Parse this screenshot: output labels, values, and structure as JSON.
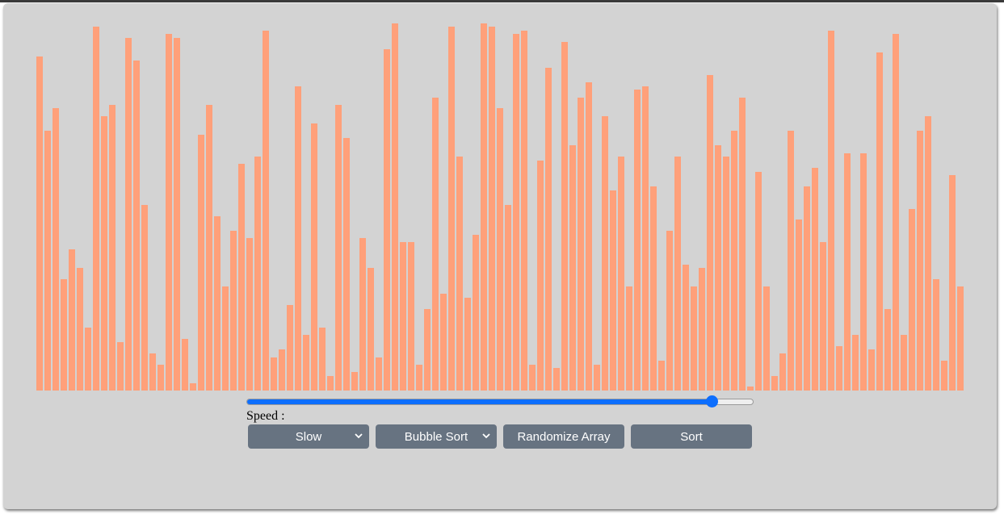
{
  "visualizer": {
    "bar_color": "#ffa07a",
    "panel_color": "#d3d3d3",
    "max_value": 100,
    "values": [
      90,
      70,
      76,
      30,
      38,
      33,
      17,
      98,
      74,
      77,
      13,
      95,
      89,
      50,
      10,
      7,
      96,
      95,
      14,
      2,
      69,
      77,
      47,
      28,
      43,
      61,
      41,
      63,
      97,
      9,
      11,
      23,
      82,
      15,
      72,
      17,
      4,
      77,
      68,
      5,
      41,
      33,
      9,
      92,
      99,
      40,
      40,
      7,
      22,
      79,
      26,
      98,
      63,
      25,
      42,
      99,
      98,
      76,
      50,
      96,
      97,
      7,
      62,
      87,
      6,
      94,
      66,
      79,
      83,
      7,
      74,
      54,
      63,
      28,
      81,
      82,
      55,
      8,
      43,
      63,
      34,
      28,
      33,
      85,
      66,
      63,
      70,
      79,
      1,
      59,
      28,
      4,
      10,
      70,
      46,
      55,
      60,
      40,
      97,
      12,
      64,
      15,
      64,
      11,
      91,
      22,
      96,
      15,
      49,
      70,
      74,
      30,
      8,
      58,
      28
    ]
  },
  "speed_slider": {
    "label": "Speed :",
    "value_fraction": 0.92,
    "accent_color": "#0d6efd"
  },
  "controls": {
    "speed_select": {
      "selected": "Slow"
    },
    "algorithm_select": {
      "selected": "Bubble Sort"
    },
    "randomize_button": {
      "label": "Randomize Array"
    },
    "sort_button": {
      "label": "Sort"
    },
    "button_color": "#677381"
  },
  "icons": {
    "dropdown": "chevron-down-icon"
  }
}
